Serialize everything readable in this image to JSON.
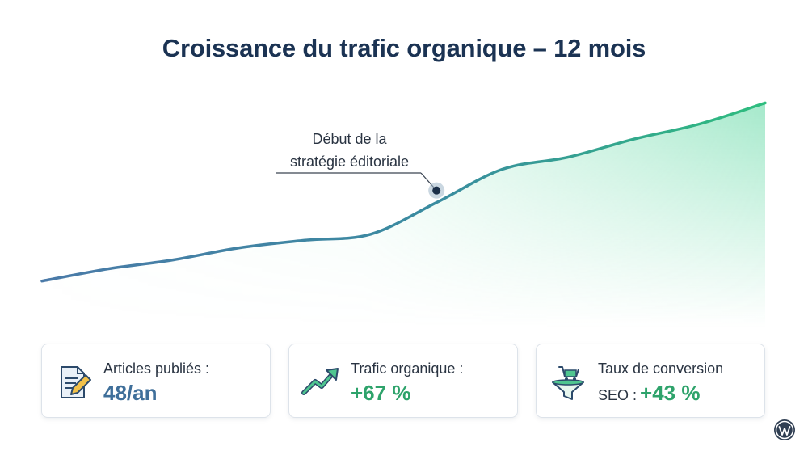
{
  "chart_data": {
    "type": "area",
    "title": "Croissance du trafic organique – 12 mois",
    "x": [
      1,
      2,
      3,
      4,
      5,
      6,
      7,
      8,
      9,
      10,
      11,
      12
    ],
    "values": [
      100,
      108,
      114,
      122,
      127,
      131,
      152,
      174,
      182,
      194,
      204,
      218
    ],
    "ylim": [
      80,
      230
    ],
    "grid": false,
    "annotation": {
      "x": 7.0,
      "y": 160,
      "lines": [
        "Début de la",
        "stratégie éditoriale"
      ]
    }
  },
  "cards": [
    {
      "label": "Articles publiés :",
      "value": "48/an",
      "icon": "document-pencil-icon"
    },
    {
      "label": "Trafic organique :",
      "value": "+67 %",
      "icon": "trending-up-icon"
    },
    {
      "label": "Taux de conversion",
      "label2": "SEO :",
      "value": "+43 %",
      "icon": "cart-funnel-icon"
    }
  ],
  "colors": {
    "title": "#1b3353",
    "line_start": "#4a7aa8",
    "line_end": "#2ebd7e",
    "fill": "#3ccf8e",
    "blue_value": "#3f6f9a",
    "green_value": "#2ea36b"
  },
  "logo": "wordpress-logo"
}
